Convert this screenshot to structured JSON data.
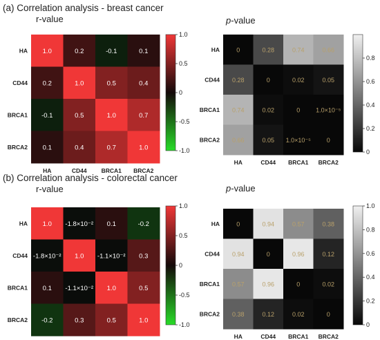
{
  "panels": [
    {
      "title": "(a) Correlation analysis - breast cancer",
      "r_title": "r-value",
      "p_title_italic": "p",
      "p_title_rest": "-value"
    },
    {
      "title": "(b) Correlation analysis - colorectal cancer",
      "r_title": "r-value",
      "p_title_italic": "p",
      "p_title_rest": "-value"
    }
  ],
  "chart_data": [
    {
      "type": "heatmap",
      "panel": "(a) r-value",
      "rows": [
        "HA",
        "CD44",
        "BRCA1",
        "BRCA2"
      ],
      "cols": [
        "HA",
        "CD44",
        "BRCA1",
        "BRCA2"
      ],
      "values": [
        [
          1.0,
          0.2,
          -0.1,
          0.1
        ],
        [
          0.2,
          1.0,
          0.5,
          0.4
        ],
        [
          -0.1,
          0.5,
          1.0,
          0.7
        ],
        [
          0.1,
          0.4,
          0.7,
          1.0
        ]
      ],
      "labels": [
        [
          "1.0",
          "0.2",
          "-0.1",
          "0.1"
        ],
        [
          "0.2",
          "1.0",
          "0.5",
          "0.4"
        ],
        [
          "-0.1",
          "0.5",
          "1.0",
          "0.7"
        ],
        [
          "0.1",
          "0.4",
          "0.7",
          "1.0"
        ]
      ],
      "colorbar": {
        "min": -1.0,
        "max": 1.0,
        "ticks": [
          "1.0",
          "0.5",
          "0",
          "-0.5",
          "-1.0"
        ],
        "scale": "green-black-red"
      }
    },
    {
      "type": "heatmap",
      "panel": "(a) p-value",
      "rows": [
        "HA",
        "CD44",
        "BRCA1",
        "BRCA2"
      ],
      "cols": [
        "HA",
        "CD44",
        "BRCA1",
        "BRCA2"
      ],
      "values": [
        [
          0,
          0.28,
          0.74,
          0.66
        ],
        [
          0.28,
          0,
          0.02,
          0.05
        ],
        [
          0.74,
          0.02,
          0,
          1e-05
        ],
        [
          0.66,
          0.05,
          1e-05,
          0
        ]
      ],
      "labels": [
        [
          "0",
          "0.28",
          "0.74",
          "0.66"
        ],
        [
          "0.28",
          "0",
          "0.02",
          "0.05"
        ],
        [
          "0.74",
          "0.02",
          "0",
          "1.0×10⁻⁵"
        ],
        [
          "0.66",
          "0.05",
          "1.0×10⁻⁵",
          "0"
        ]
      ],
      "colorbar": {
        "min": 0,
        "max": 1.0,
        "ticks": [
          "0.8",
          "0.6",
          "0.4",
          "0.2",
          "0"
        ],
        "scale": "black-white"
      }
    },
    {
      "type": "heatmap",
      "panel": "(b) r-value",
      "rows": [
        "HA",
        "CD44",
        "BRCA1",
        "BRCA2"
      ],
      "cols": [
        "HA",
        "CD44",
        "BRCA1",
        "BRCA2"
      ],
      "values": [
        [
          1.0,
          -0.018,
          0.1,
          -0.2
        ],
        [
          -0.018,
          1.0,
          -0.011,
          0.3
        ],
        [
          0.1,
          -0.011,
          1.0,
          0.5
        ],
        [
          -0.2,
          0.3,
          0.5,
          1.0
        ]
      ],
      "labels": [
        [
          "1.0",
          "-1.8×10⁻²",
          "0.1",
          "-0.2"
        ],
        [
          "-1.8×10⁻²",
          "1.0",
          "-1.1×10⁻²",
          "0.3"
        ],
        [
          "0.1",
          "-1.1×10⁻²",
          "1.0",
          "0.5"
        ],
        [
          "-0.2",
          "0.3",
          "0.5",
          "1.0"
        ]
      ],
      "colorbar": {
        "min": -1.0,
        "max": 1.0,
        "ticks": [
          "1.0",
          "0.5",
          "0",
          "-0.5",
          "-1.0"
        ],
        "scale": "green-black-red"
      }
    },
    {
      "type": "heatmap",
      "panel": "(b) p-value",
      "rows": [
        "HA",
        "CD44",
        "BRCA1",
        "BRCA2"
      ],
      "cols": [
        "HA",
        "CD44",
        "BRCA1",
        "BRCA2"
      ],
      "values": [
        [
          0,
          0.94,
          0.57,
          0.38
        ],
        [
          0.94,
          0,
          0.96,
          0.12
        ],
        [
          0.57,
          0.96,
          0,
          0.02
        ],
        [
          0.38,
          0.12,
          0.02,
          0
        ]
      ],
      "labels": [
        [
          "0",
          "0.94",
          "0.57",
          "0.38"
        ],
        [
          "0.94",
          "0",
          "0.96",
          "0.12"
        ],
        [
          "0.57",
          "0.96",
          "0",
          "0.02"
        ],
        [
          "0.38",
          "0.12",
          "0.02",
          "0"
        ]
      ],
      "colorbar": {
        "min": 0,
        "max": 1.0,
        "ticks": [
          "1.0",
          "0.8",
          "0.6",
          "0.4",
          "0.2",
          "0"
        ],
        "scale": "black-white"
      }
    }
  ]
}
